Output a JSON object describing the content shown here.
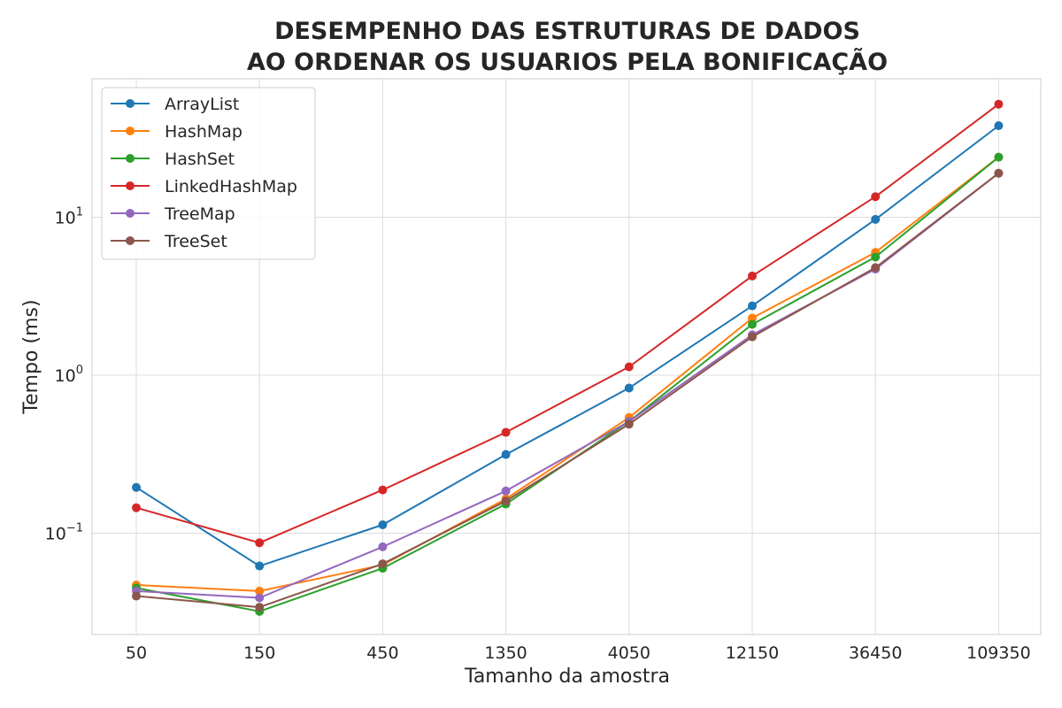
{
  "chart_data": {
    "type": "line",
    "title": [
      "DESEMPENHO DAS ESTRUTURAS DE DADOS",
      "AO ORDENAR OS USUARIOS PELA BONIFICAÇÃO"
    ],
    "xlabel": "Tamanho da amostra",
    "ylabel": "Tempo (ms)",
    "yscale": "log",
    "ylim": [
      0.02,
      70
    ],
    "grid": true,
    "legend": "top-left",
    "categories": [
      "50",
      "150",
      "450",
      "1350",
      "4050",
      "12150",
      "36450",
      "109350"
    ],
    "yticks": [
      {
        "value": 0.1,
        "base": "10",
        "exp": "−1"
      },
      {
        "value": 1,
        "base": "10",
        "exp": "0"
      },
      {
        "value": 10,
        "base": "10",
        "exp": "1"
      }
    ],
    "series": [
      {
        "name": "ArrayList",
        "color": "#1f77b4",
        "values": [
          0.195,
          0.062,
          0.113,
          0.315,
          0.83,
          2.75,
          9.7,
          38
        ]
      },
      {
        "name": "HashMap",
        "color": "#ff7f0e",
        "values": [
          0.047,
          0.043,
          0.063,
          0.165,
          0.54,
          2.3,
          6.0,
          24
        ]
      },
      {
        "name": "HashSet",
        "color": "#2ca02c",
        "values": [
          0.045,
          0.032,
          0.06,
          0.153,
          0.51,
          2.1,
          5.6,
          24
        ]
      },
      {
        "name": "LinkedHashMap",
        "color": "#d62728",
        "values": [
          0.145,
          0.087,
          0.188,
          0.435,
          1.13,
          4.25,
          13.5,
          52
        ]
      },
      {
        "name": "TreeMap",
        "color": "#9467bd",
        "values": [
          0.043,
          0.039,
          0.082,
          0.185,
          0.51,
          1.8,
          4.7,
          19
        ]
      },
      {
        "name": "TreeSet",
        "color": "#8c564b",
        "values": [
          0.04,
          0.034,
          0.064,
          0.16,
          0.49,
          1.75,
          4.8,
          19
        ]
      }
    ]
  }
}
